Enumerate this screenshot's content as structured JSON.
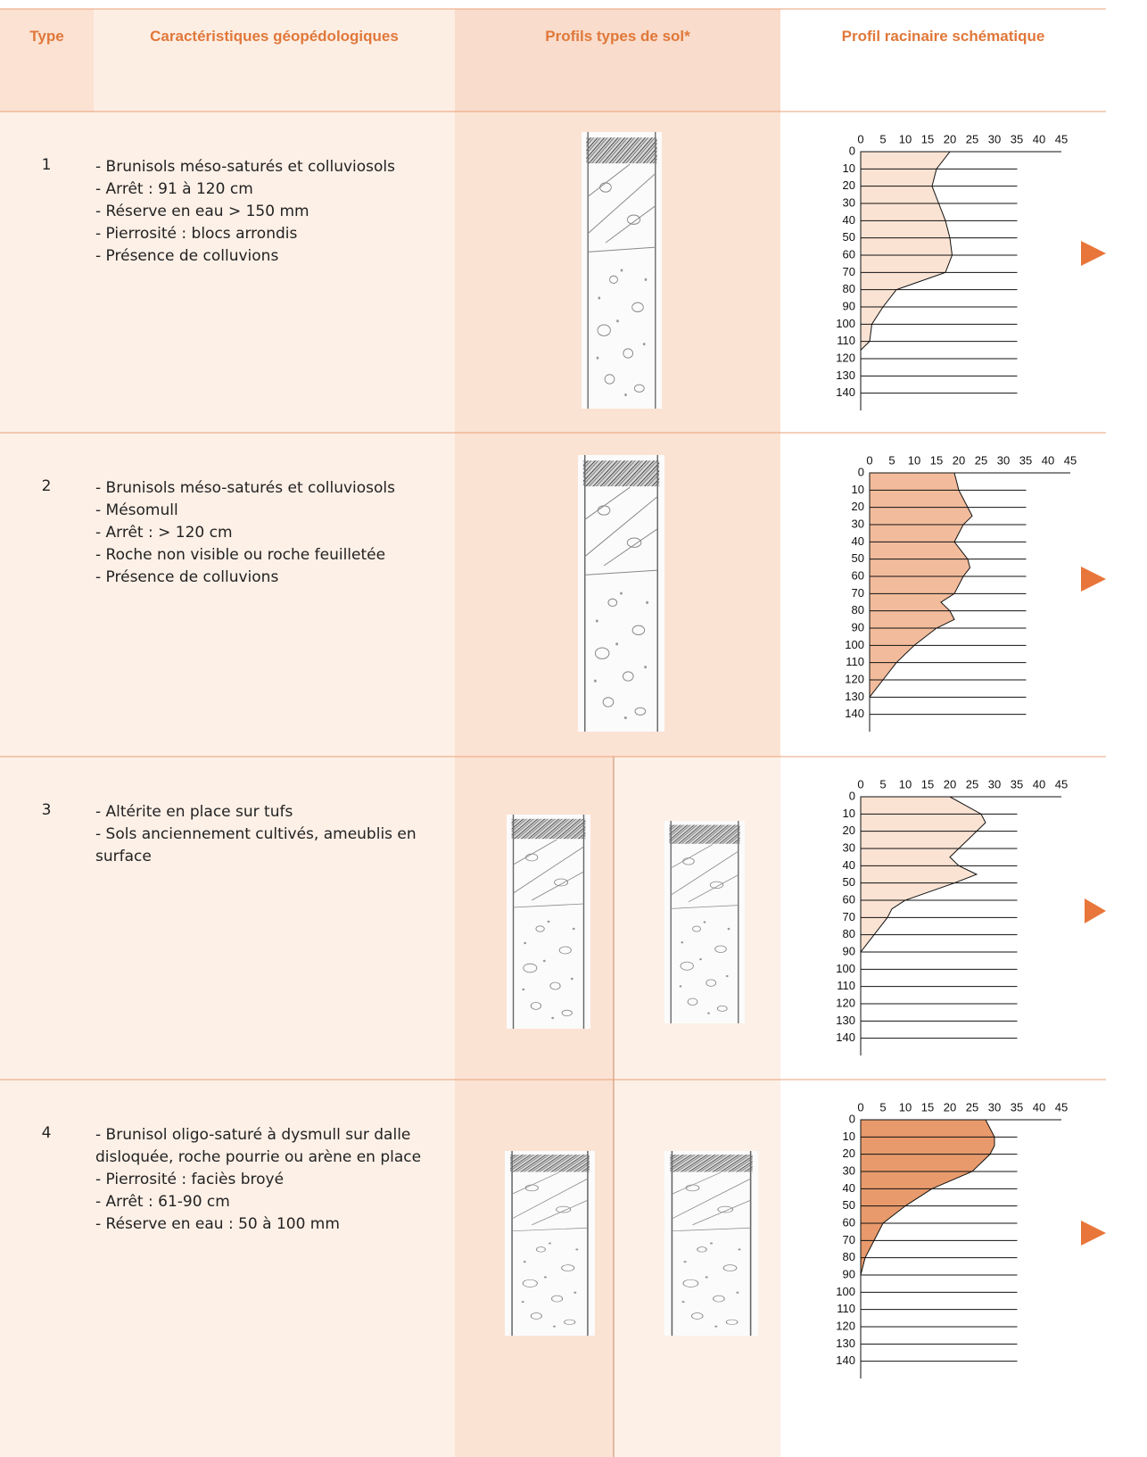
{
  "header": {
    "type": "Type",
    "characteristics": "Caractéristiques géopédologiques",
    "profiles": "Profils types de sol*",
    "root_profile": "Profil racinaire schématique"
  },
  "rows": [
    {
      "type": "1",
      "characteristics": [
        "- Brunisols méso-saturés et colluviosols",
        "- Arrêt : 91 à 120 cm",
        "- Réserve en eau > 150 mm",
        "- Pierrosité : blocs arrondis",
        "- Présence de colluvions"
      ],
      "root_chart": {
        "type": "area",
        "color": "#fbe3d3",
        "xlim": [
          0,
          45
        ],
        "ylim": [
          0,
          150
        ],
        "xticks": [
          0,
          5,
          10,
          15,
          20,
          25,
          30,
          35,
          40,
          45
        ],
        "yticks": [
          0,
          10,
          20,
          30,
          40,
          50,
          60,
          70,
          80,
          90,
          100,
          110,
          120,
          130,
          140
        ],
        "depths": [
          0,
          10,
          20,
          30,
          40,
          50,
          60,
          70,
          80,
          90,
          100,
          110,
          115
        ],
        "values": [
          20,
          17,
          16,
          17.5,
          19,
          20,
          20.5,
          19,
          8,
          5,
          2.5,
          2,
          0
        ]
      }
    },
    {
      "type": "2",
      "characteristics": [
        "- Brunisols méso-saturés et colluviosols",
        "- Mésomull",
        "- Arrêt : > 120 cm",
        "- Roche non visible ou roche feuilletée",
        "- Présence de colluvions"
      ],
      "root_chart": {
        "type": "area",
        "color": "#f2bc9c",
        "xlim": [
          0,
          45
        ],
        "ylim": [
          0,
          150
        ],
        "xticks": [
          0,
          5,
          10,
          15,
          20,
          25,
          30,
          35,
          40,
          45
        ],
        "yticks": [
          0,
          10,
          20,
          30,
          40,
          50,
          60,
          70,
          80,
          90,
          100,
          110,
          120,
          130,
          140
        ],
        "depths": [
          0,
          10,
          20,
          25,
          30,
          40,
          50,
          55,
          60,
          70,
          75,
          80,
          85,
          90,
          100,
          110,
          120,
          130
        ],
        "values": [
          19,
          20,
          22,
          23,
          21,
          19,
          22,
          22.5,
          21,
          19,
          16,
          18,
          19,
          15,
          10,
          6,
          3,
          0
        ]
      }
    },
    {
      "type": "3",
      "characteristics": [
        "- Altérite en place sur tufs",
        "- Sols anciennement cultivés, ameublis en surface"
      ],
      "root_chart": {
        "type": "area",
        "color": "#fbe3d3",
        "xlim": [
          0,
          45
        ],
        "ylim": [
          0,
          150
        ],
        "xticks": [
          0,
          5,
          10,
          15,
          20,
          25,
          30,
          35,
          40,
          45
        ],
        "yticks": [
          0,
          10,
          20,
          30,
          40,
          50,
          60,
          70,
          80,
          90,
          100,
          110,
          120,
          130,
          140
        ],
        "depths": [
          0,
          10,
          15,
          20,
          30,
          35,
          40,
          45,
          50,
          60,
          65,
          70,
          80,
          90
        ],
        "values": [
          20,
          27,
          28,
          26,
          22,
          20,
          22,
          26,
          21,
          10,
          7,
          6,
          3,
          0
        ]
      }
    },
    {
      "type": "4",
      "characteristics": [
        "- Brunisol oligo-saturé à dysmull sur dalle disloquée, roche pourrie ou arène en place",
        "- Pierrosité : faciès broyé",
        "- Arrêt : 61-90 cm",
        "- Réserve en eau : 50 à 100 mm"
      ],
      "root_chart": {
        "type": "area",
        "color": "#e89a6c",
        "xlim": [
          0,
          45
        ],
        "ylim": [
          0,
          150
        ],
        "xticks": [
          0,
          5,
          10,
          15,
          20,
          25,
          30,
          35,
          40,
          45
        ],
        "yticks": [
          0,
          10,
          20,
          30,
          40,
          50,
          60,
          70,
          80,
          90,
          100,
          110,
          120,
          130,
          140
        ],
        "depths": [
          0,
          10,
          15,
          20,
          30,
          40,
          50,
          60,
          70,
          80,
          90
        ],
        "values": [
          28,
          30,
          30,
          29,
          25,
          16,
          10,
          5,
          3,
          1,
          0
        ]
      }
    }
  ]
}
